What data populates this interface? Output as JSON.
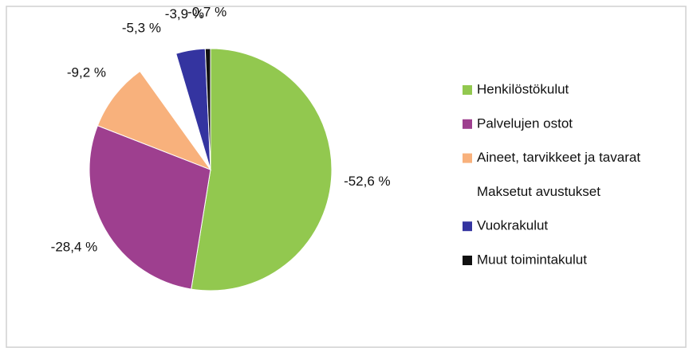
{
  "chart_data": {
    "type": "pie",
    "categories": [
      "Henkilöstökulut",
      "Palvelujen ostot",
      "Aineet, tarvikkeet ja tavarat",
      "Maksetut avustukset",
      "Vuokrakulut",
      "Muut toimintakulut"
    ],
    "values": [
      -52.6,
      -28.4,
      -9.2,
      -5.3,
      -3.9,
      -0.7
    ],
    "value_labels": [
      "-52,6 %",
      "-28,4 %",
      "-9,2 %",
      "-5,3 %",
      "-3,9 %",
      "-0,7 %"
    ],
    "colors": [
      "#92c84f",
      "#9e3f8f",
      "#f8b17c",
      "#ffffff",
      "#3434a0",
      "#111111"
    ],
    "legend": "right"
  }
}
